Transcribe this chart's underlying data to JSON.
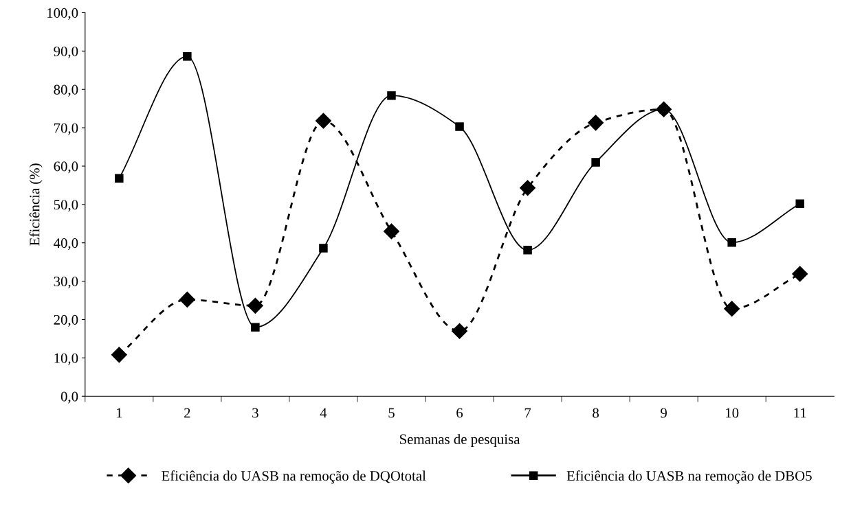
{
  "chart_data": {
    "type": "line",
    "xlabel": "Semanas de pesquisa",
    "ylabel": "Eficiência (%)",
    "categories": [
      "1",
      "2",
      "3",
      "4",
      "5",
      "6",
      "7",
      "8",
      "9",
      "10",
      "11"
    ],
    "series": [
      {
        "name": "Eficiência do UASB na remoção de DQOtotal",
        "color": "#000000",
        "marker": "diamond",
        "line_style": "dashed",
        "values": [
          10.8,
          25.2,
          23.6,
          71.8,
          43.0,
          17.0,
          54.3,
          71.3,
          74.8,
          22.8,
          31.9
        ]
      },
      {
        "name": "Eficiência do UASB na remoção de DBO5",
        "color": "#000000",
        "marker": "square",
        "line_style": "solid",
        "values": [
          56.8,
          88.6,
          18.0,
          38.6,
          78.4,
          70.3,
          38.1,
          61.0,
          74.8,
          40.1,
          50.2
        ]
      }
    ],
    "ylim": [
      0,
      100
    ],
    "yticks": [
      {
        "value": 0,
        "label": "0,0"
      },
      {
        "value": 10,
        "label": "10,0"
      },
      {
        "value": 20,
        "label": "20,0"
      },
      {
        "value": 30,
        "label": "30,0"
      },
      {
        "value": 40,
        "label": "40,0"
      },
      {
        "value": 50,
        "label": "50,0"
      },
      {
        "value": 60,
        "label": "60,0"
      },
      {
        "value": 70,
        "label": "70,0"
      },
      {
        "value": 80,
        "label": "80,0"
      },
      {
        "value": 90,
        "label": "90,0"
      },
      {
        "value": 100,
        "label": "100,0"
      }
    ],
    "grid": false,
    "legend": "bottom"
  }
}
